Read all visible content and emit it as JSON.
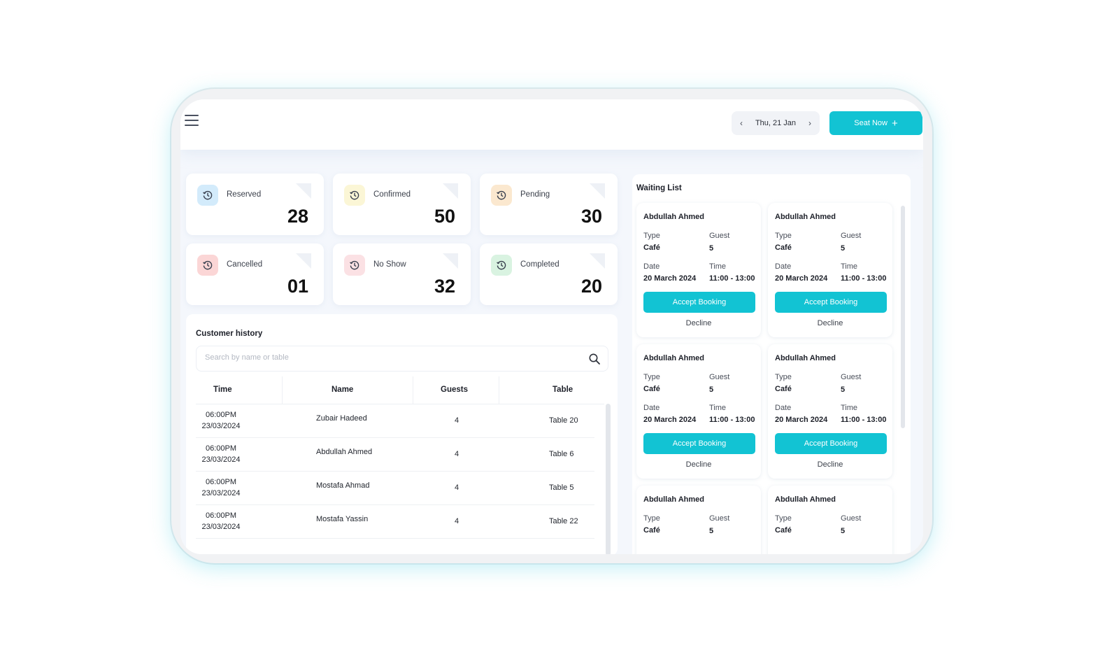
{
  "header": {
    "date_label": "Thu, 21 Jan",
    "prev_glyph": "‹",
    "next_glyph": "›",
    "seat_now_label": "Seat Now",
    "seat_now_icon": "+"
  },
  "colors": {
    "accent": "#12c3d3",
    "reserved_icon_bg": "#d3ebfb",
    "confirmed_icon_bg": "#fbf6d6",
    "pending_icon_bg": "#fbe8cf",
    "cancelled_icon_bg": "#fbd6d6",
    "noshow_icon_bg": "#fbe1e4",
    "completed_icon_bg": "#d9f3e1"
  },
  "stats": [
    {
      "label": "Reserved",
      "value": "28",
      "icon": "clock-history-icon"
    },
    {
      "label": "Confirmed",
      "value": "50",
      "icon": "clock-history-icon"
    },
    {
      "label": "Pending",
      "value": "30",
      "icon": "clock-history-icon"
    },
    {
      "label": "Cancelled",
      "value": "01",
      "icon": "clock-history-icon"
    },
    {
      "label": "No Show",
      "value": "32",
      "icon": "clock-history-icon"
    },
    {
      "label": "Completed",
      "value": "20",
      "icon": "clock-history-icon"
    }
  ],
  "history": {
    "title": "Customer history",
    "search_placeholder": "Search by name or table",
    "columns": [
      "Time",
      "Name",
      "Guests",
      "Table"
    ],
    "rows": [
      {
        "time": "06:00PM",
        "date": "23/03/2024",
        "name": "Zubair Hadeed",
        "guests": "4",
        "table": "Table 20"
      },
      {
        "time": "06:00PM",
        "date": "23/03/2024",
        "name": "Abdullah Ahmed",
        "guests": "4",
        "table": "Table 6"
      },
      {
        "time": "06:00PM",
        "date": "23/03/2024",
        "name": "Mostafa Ahmad",
        "guests": "4",
        "table": "Table 5"
      },
      {
        "time": "06:00PM",
        "date": "23/03/2024",
        "name": "Mostafa Yassin",
        "guests": "4",
        "table": "Table 22"
      }
    ]
  },
  "waiting": {
    "title": "Waiting List",
    "labels": {
      "type": "Type",
      "guest": "Guest",
      "date": "Date",
      "time": "Time",
      "accept": "Accept Booking",
      "decline": "Decline"
    },
    "cards": [
      {
        "name": "Abdullah Ahmed",
        "type": "Café",
        "guest": "5",
        "date": "20 March 2024",
        "time": "11:00 - 13:00"
      },
      {
        "name": "Abdullah Ahmed",
        "type": "Café",
        "guest": "5",
        "date": "20 March 2024",
        "time": "11:00 - 13:00"
      },
      {
        "name": "Abdullah Ahmed",
        "type": "Café",
        "guest": "5",
        "date": "20 March 2024",
        "time": "11:00 - 13:00"
      },
      {
        "name": "Abdullah Ahmed",
        "type": "Café",
        "guest": "5",
        "date": "20 March 2024",
        "time": "11:00 - 13:00"
      },
      {
        "name": "Abdullah Ahmed",
        "type": "Café",
        "guest": "5",
        "date": "",
        "time": ""
      },
      {
        "name": "Abdullah Ahmed",
        "type": "Café",
        "guest": "5",
        "date": "",
        "time": ""
      }
    ]
  }
}
